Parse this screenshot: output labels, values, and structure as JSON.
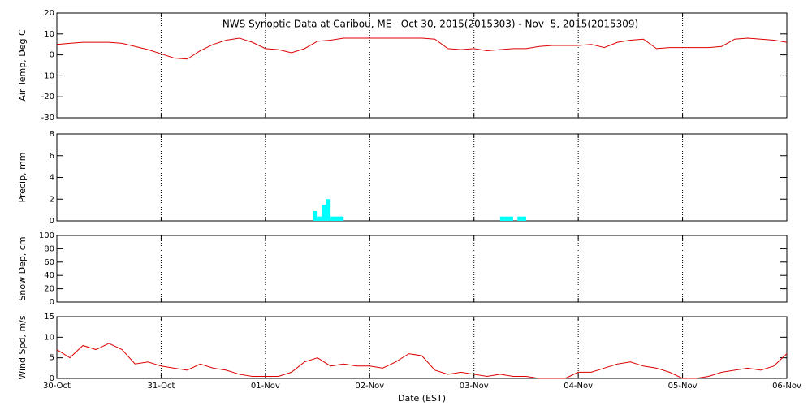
{
  "chart_data": [
    {
      "type": "line",
      "title": "NWS Synoptic Data at Caribou, ME   Oct 30, 2015(2015303) - Nov  5, 2015(2015309)",
      "ylabel": "Air Temp, Deg C",
      "ylim": [
        -30,
        20
      ],
      "yticks": [
        -30,
        -20,
        -10,
        0,
        10,
        20
      ],
      "xlim": [
        0,
        168
      ],
      "xticks": [
        0,
        24,
        48,
        72,
        96,
        120,
        144,
        168
      ],
      "grid": true,
      "x": [
        0,
        3,
        6,
        9,
        12,
        15,
        18,
        21,
        24,
        27,
        30,
        33,
        36,
        39,
        42,
        45,
        48,
        51,
        54,
        57,
        60,
        63,
        66,
        69,
        72,
        75,
        78,
        81,
        84,
        87,
        90,
        93,
        96,
        99,
        102,
        105,
        108,
        111,
        114,
        117,
        120,
        123,
        126,
        129,
        132,
        135,
        138,
        141,
        144,
        147,
        150,
        153,
        156,
        159,
        162,
        165,
        168
      ],
      "series": [
        {
          "name": "Air Temp",
          "color": "#dd0000",
          "values": [
            5,
            5.5,
            6,
            6,
            6,
            5.5,
            4,
            2.5,
            0.5,
            -1.5,
            -2,
            2,
            5,
            7,
            8,
            6,
            3,
            2.5,
            1,
            3,
            6.5,
            7,
            8,
            8,
            8,
            8,
            8,
            8,
            8,
            7.5,
            3,
            2.5,
            3,
            2,
            2.5,
            3,
            3,
            4,
            4.5,
            4.5,
            4.5,
            5,
            3.5,
            6,
            7,
            7.5,
            3,
            3.5,
            3.5,
            3.5,
            3.5,
            4,
            7.5,
            8,
            7.5,
            7,
            6
          ]
        }
      ]
    },
    {
      "type": "bar",
      "ylabel": "Precip, mm",
      "ylim": [
        0,
        8
      ],
      "yticks": [
        0,
        2,
        4,
        6,
        8
      ],
      "xlim": [
        0,
        168
      ],
      "xticks": [
        0,
        24,
        48,
        72,
        96,
        120,
        144,
        168
      ],
      "grid": true,
      "x": [
        59,
        60,
        61,
        62,
        63,
        64,
        65,
        102,
        103,
        104,
        106,
        107
      ],
      "series": [
        {
          "name": "Precip",
          "color": "#00ffff",
          "values": [
            0.9,
            0.4,
            1.5,
            2.0,
            0.4,
            0.4,
            0.4,
            0.4,
            0.4,
            0.4,
            0.4,
            0.4
          ]
        }
      ]
    },
    {
      "type": "line",
      "ylabel": "Snow Dep, cm",
      "ylim": [
        0,
        100
      ],
      "yticks": [
        0,
        20,
        40,
        60,
        80,
        100
      ],
      "xlim": [
        0,
        168
      ],
      "xticks": [
        0,
        24,
        48,
        72,
        96,
        120,
        144,
        168
      ],
      "grid": true
    },
    {
      "type": "line",
      "ylabel": "Wind Spd, m/s",
      "xlabel": "Date (EST)",
      "ylim": [
        0,
        15
      ],
      "yticks": [
        0,
        5,
        10,
        15
      ],
      "xlim": [
        0,
        168
      ],
      "xticks": [
        {
          "value": 0,
          "label": "30-Oct"
        },
        {
          "value": 24,
          "label": "31-Oct"
        },
        {
          "value": 48,
          "label": "01-Nov"
        },
        {
          "value": 72,
          "label": "02-Nov"
        },
        {
          "value": 96,
          "label": "03-Nov"
        },
        {
          "value": 120,
          "label": "04-Nov"
        },
        {
          "value": 144,
          "label": "05-Nov"
        },
        {
          "value": 168,
          "label": "06-Nov"
        }
      ],
      "grid": true,
      "x": [
        0,
        3,
        6,
        9,
        12,
        15,
        18,
        21,
        24,
        27,
        30,
        33,
        36,
        39,
        42,
        45,
        48,
        51,
        54,
        57,
        60,
        63,
        66,
        69,
        72,
        75,
        78,
        81,
        84,
        87,
        90,
        93,
        96,
        99,
        102,
        105,
        108,
        111,
        114,
        117,
        120,
        123,
        126,
        129,
        132,
        135,
        138,
        141,
        144,
        147,
        150,
        153,
        156,
        159,
        162,
        165,
        168
      ],
      "series": [
        {
          "name": "Wind Spd",
          "color": "#dd0000",
          "values": [
            7,
            5,
            8,
            7,
            8.5,
            7,
            3.5,
            4,
            3,
            2.5,
            2,
            3.5,
            2.5,
            2,
            1,
            0.5,
            0.5,
            0.5,
            1.5,
            4,
            5,
            3,
            3.5,
            3,
            3,
            2.5,
            4,
            6,
            5.5,
            2,
            1,
            1.5,
            1,
            0.5,
            1,
            0.5,
            0.5,
            0,
            0,
            0,
            1.5,
            1.5,
            2.5,
            3.5,
            4,
            3,
            2.5,
            1.5,
            0,
            0,
            0.5,
            1.5,
            2,
            2.5,
            2,
            3,
            6
          ]
        }
      ]
    }
  ]
}
